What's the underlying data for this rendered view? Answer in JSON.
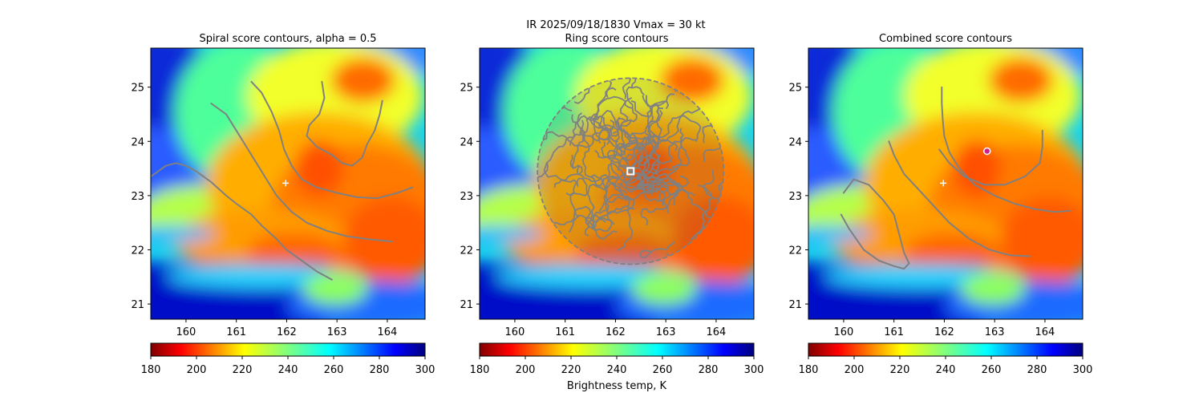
{
  "figure": {
    "suptitle_line1": "IR  2025/09/18/1830    Vmax = 30 kt",
    "colorbar_label": "Brightness temp, K"
  },
  "colors": {
    "contour": "#808080",
    "marker": "#ffffff",
    "combined_marker": "#d0208a"
  },
  "chart_data": [
    {
      "type": "heatmap",
      "title": "Spiral score contours, alpha =  0.5",
      "xlabel": "",
      "ylabel": "",
      "xlim": [
        159.3,
        164.75
      ],
      "ylim": [
        20.72,
        25.72
      ],
      "xticks": [
        "160",
        "161",
        "162",
        "163",
        "164"
      ],
      "yticks": [
        "21",
        "22",
        "23",
        "24",
        "25"
      ],
      "colorbar": {
        "min": 180,
        "max": 300,
        "ticks": [
          "180",
          "200",
          "220",
          "240",
          "260",
          "280",
          "300"
        ],
        "cmap": "jet_r"
      },
      "marker": {
        "symbol": "+",
        "lon": 161.98,
        "lat": 23.23
      },
      "contours": [
        [
          [
            159.3,
            23.35
          ],
          [
            159.6,
            23.55
          ],
          [
            159.8,
            23.6
          ],
          [
            160.0,
            23.55
          ],
          [
            160.2,
            23.45
          ],
          [
            160.5,
            23.25
          ],
          [
            160.8,
            23.0
          ],
          [
            161.0,
            22.85
          ],
          [
            161.3,
            22.65
          ],
          [
            161.5,
            22.45
          ],
          [
            161.8,
            22.2
          ],
          [
            162.0,
            22.0
          ],
          [
            162.3,
            21.8
          ],
          [
            162.6,
            21.6
          ],
          [
            162.9,
            21.45
          ]
        ],
        [
          [
            160.5,
            24.7
          ],
          [
            160.8,
            24.5
          ],
          [
            161.0,
            24.2
          ],
          [
            161.2,
            23.9
          ],
          [
            161.4,
            23.6
          ],
          [
            161.6,
            23.3
          ],
          [
            161.8,
            23.0
          ],
          [
            162.1,
            22.7
          ],
          [
            162.4,
            22.5
          ],
          [
            162.8,
            22.35
          ],
          [
            163.2,
            22.25
          ],
          [
            163.6,
            22.2
          ],
          [
            164.1,
            22.15
          ]
        ],
        [
          [
            161.3,
            25.1
          ],
          [
            161.5,
            24.9
          ],
          [
            161.7,
            24.55
          ],
          [
            161.85,
            24.2
          ],
          [
            161.95,
            23.85
          ],
          [
            162.1,
            23.55
          ],
          [
            162.3,
            23.3
          ],
          [
            162.6,
            23.15
          ],
          [
            163.0,
            23.05
          ],
          [
            163.4,
            22.97
          ],
          [
            163.8,
            22.95
          ],
          [
            164.2,
            23.05
          ],
          [
            164.5,
            23.15
          ]
        ],
        [
          [
            162.7,
            25.1
          ],
          [
            162.75,
            24.8
          ],
          [
            162.65,
            24.5
          ],
          [
            162.45,
            24.3
          ],
          [
            162.4,
            24.1
          ],
          [
            162.6,
            23.9
          ],
          [
            162.9,
            23.75
          ],
          [
            163.1,
            23.6
          ],
          [
            163.3,
            23.55
          ],
          [
            163.5,
            23.7
          ],
          [
            163.6,
            23.95
          ],
          [
            163.75,
            24.2
          ],
          [
            163.85,
            24.5
          ],
          [
            163.9,
            24.75
          ]
        ]
      ]
    },
    {
      "type": "heatmap",
      "title": "Ring score contours",
      "xlabel": "",
      "ylabel": "",
      "xlim": [
        159.3,
        164.75
      ],
      "ylim": [
        20.72,
        25.72
      ],
      "xticks": [
        "160",
        "161",
        "162",
        "163",
        "164"
      ],
      "yticks": [
        "21",
        "22",
        "23",
        "24",
        "25"
      ],
      "colorbar": {
        "min": 180,
        "max": 300,
        "ticks": [
          "180",
          "200",
          "220",
          "240",
          "260",
          "280",
          "300"
        ],
        "cmap": "jet_r"
      },
      "marker": {
        "symbol": "square",
        "lon": 162.3,
        "lat": 23.45
      },
      "ring": {
        "center_lon": 162.3,
        "center_lat": 23.45,
        "radius_deg": 1.85
      }
    },
    {
      "type": "heatmap",
      "title": "Combined score contours",
      "xlabel": "",
      "ylabel": "",
      "xlim": [
        159.3,
        164.75
      ],
      "ylim": [
        20.72,
        25.72
      ],
      "xticks": [
        "160",
        "161",
        "162",
        "163",
        "164"
      ],
      "yticks": [
        "21",
        "22",
        "23",
        "24",
        "25"
      ],
      "colorbar": {
        "min": 180,
        "max": 300,
        "ticks": [
          "180",
          "200",
          "220",
          "240",
          "260",
          "280",
          "300"
        ],
        "cmap": "jet_r"
      },
      "marker": {
        "symbol": "+",
        "lon": 161.98,
        "lat": 23.23
      },
      "best_center": {
        "symbol": "circle",
        "lon": 162.85,
        "lat": 23.82
      },
      "contours": [
        [
          [
            160.0,
            23.05
          ],
          [
            160.2,
            23.3
          ],
          [
            160.5,
            23.2
          ],
          [
            160.8,
            22.9
          ],
          [
            161.0,
            22.65
          ],
          [
            161.1,
            22.3
          ],
          [
            161.2,
            21.95
          ],
          [
            161.3,
            21.75
          ],
          [
            161.2,
            21.65
          ],
          [
            161.0,
            21.7
          ],
          [
            160.7,
            21.8
          ],
          [
            160.4,
            22.0
          ],
          [
            160.1,
            22.4
          ],
          [
            159.95,
            22.65
          ]
        ],
        [
          [
            160.9,
            24.0
          ],
          [
            161.0,
            23.75
          ],
          [
            161.2,
            23.4
          ],
          [
            161.5,
            23.1
          ],
          [
            161.8,
            22.8
          ],
          [
            162.1,
            22.5
          ],
          [
            162.5,
            22.2
          ],
          [
            162.9,
            22.0
          ],
          [
            163.3,
            21.9
          ],
          [
            163.7,
            21.88
          ]
        ],
        [
          [
            161.95,
            25.0
          ],
          [
            161.95,
            24.7
          ],
          [
            161.97,
            24.4
          ],
          [
            162.0,
            24.1
          ],
          [
            162.1,
            23.8
          ],
          [
            162.3,
            23.5
          ],
          [
            162.6,
            23.2
          ],
          [
            163.0,
            23.0
          ],
          [
            163.4,
            22.85
          ],
          [
            163.8,
            22.75
          ],
          [
            164.2,
            22.7
          ],
          [
            164.5,
            22.72
          ]
        ],
        [
          [
            161.9,
            23.85
          ],
          [
            162.1,
            23.6
          ],
          [
            162.4,
            23.35
          ],
          [
            162.8,
            23.2
          ],
          [
            163.2,
            23.2
          ],
          [
            163.6,
            23.35
          ],
          [
            163.9,
            23.6
          ],
          [
            163.95,
            23.9
          ],
          [
            163.95,
            24.2
          ]
        ]
      ]
    }
  ]
}
